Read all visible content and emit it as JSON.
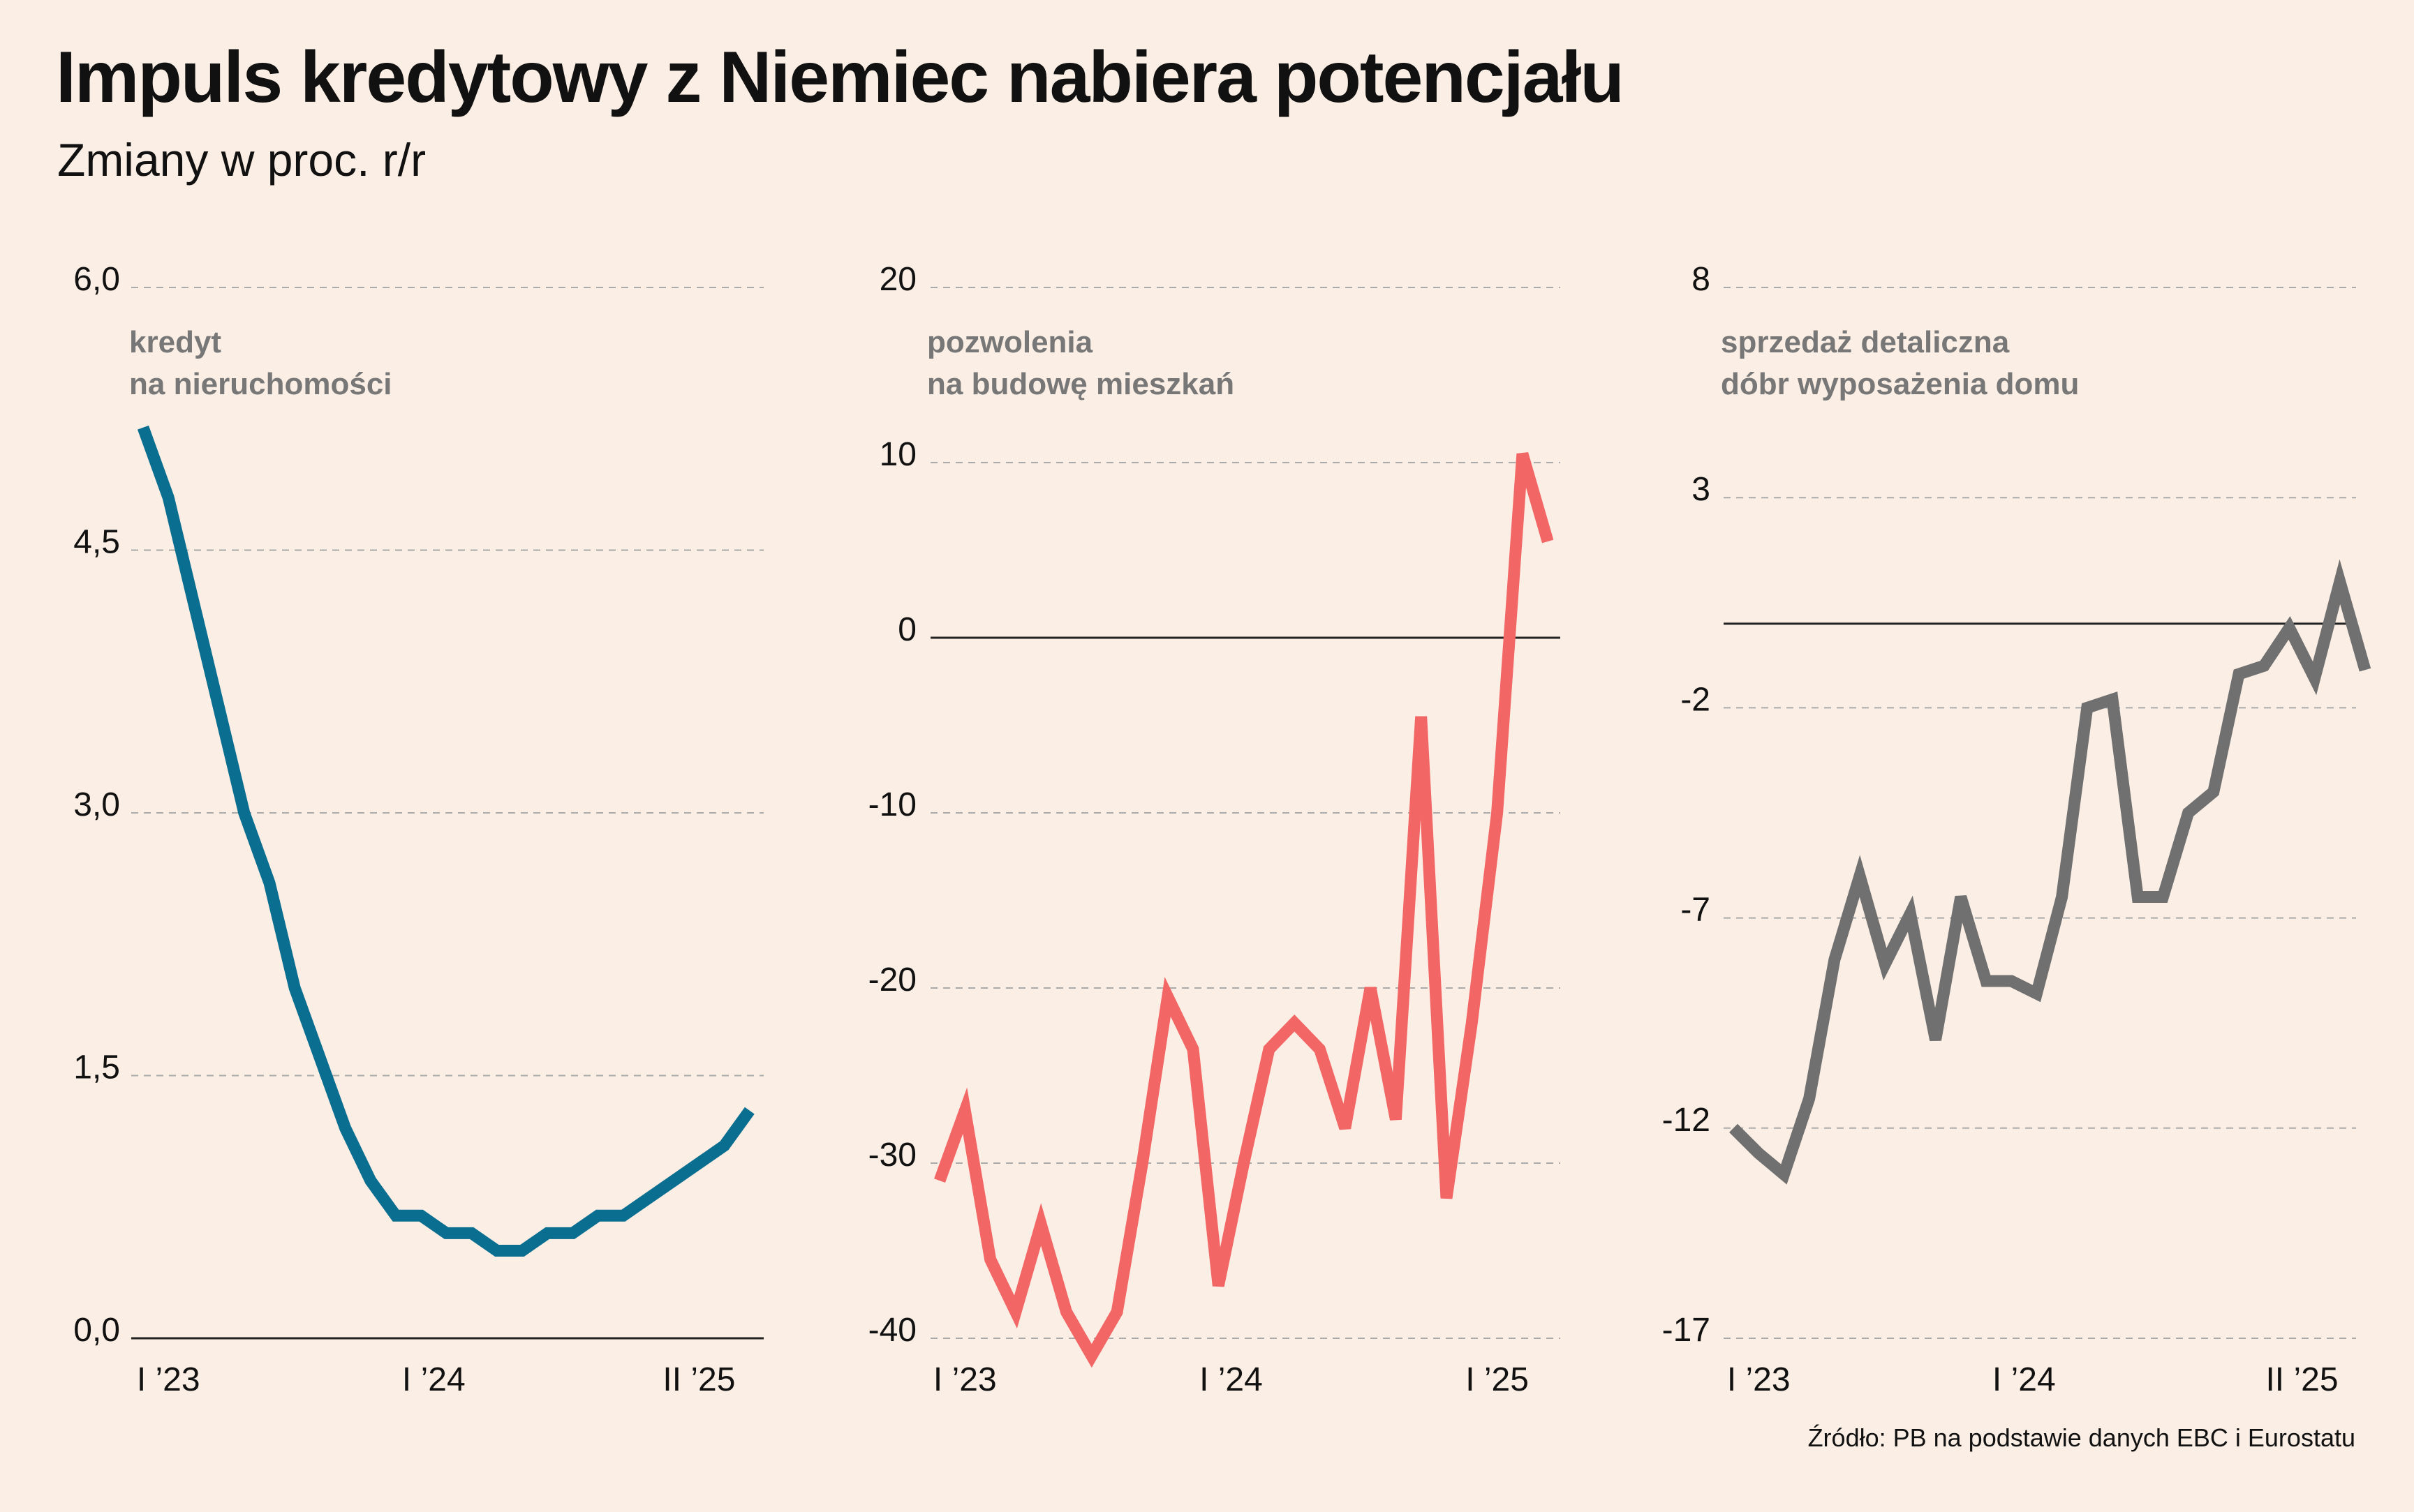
{
  "title": "Impuls kredytowy z Niemiec nabiera potencjału",
  "subtitle": "Zmiany w proc. r/r",
  "source": "Źródło: PB na podstawie danych EBC i Eurostatu",
  "chart_data": [
    {
      "type": "line",
      "series": [
        {
          "name": "kredyt na nieruchomości",
          "label_lines": [
            "kredyt",
            "na nieruchomości"
          ],
          "color": "#0a6e91",
          "values": [
            5.2,
            4.8,
            4.2,
            3.6,
            3.0,
            2.6,
            2.0,
            1.6,
            1.2,
            0.9,
            0.7,
            0.7,
            0.6,
            0.6,
            0.5,
            0.5,
            0.6,
            0.6,
            0.7,
            0.7,
            0.8,
            0.9,
            1.0,
            1.1,
            1.3
          ]
        }
      ],
      "ylim": [
        0,
        6
      ],
      "yticks": [
        "6,0",
        "4,5",
        "3,0",
        "1,5",
        "0,0"
      ],
      "ytick_values": [
        6,
        4.5,
        3,
        1.5,
        0
      ],
      "xticks": [
        {
          "label": "I ’23",
          "index": 1
        },
        {
          "label": "I ’24",
          "index": 11.5
        },
        {
          "label": "II ’25",
          "index": 22
        }
      ],
      "zero_line": 0
    },
    {
      "type": "line",
      "series": [
        {
          "name": "pozwolenia na budowę mieszkań",
          "label_lines": [
            "pozwolenia",
            "na budowę mieszkań"
          ],
          "color": "#f26666",
          "values": [
            -31,
            -27,
            -35.5,
            -38.5,
            -33.5,
            -38.5,
            -41,
            -38.5,
            -30,
            -20.5,
            -23.5,
            -37,
            -30,
            -23.5,
            -22,
            -23.5,
            -28,
            -20,
            -27.5,
            -4.5,
            -32,
            -22,
            -10,
            10.5,
            5.5
          ]
        }
      ],
      "ylim": [
        -40,
        20
      ],
      "yticks": [
        "20",
        "10",
        "0",
        "-10",
        "-20",
        "-30",
        "-40"
      ],
      "ytick_values": [
        20,
        10,
        0,
        -10,
        -20,
        -30,
        -40
      ],
      "xticks": [
        {
          "label": "I ’23",
          "index": 1
        },
        {
          "label": "I ’24",
          "index": 11.5
        },
        {
          "label": "I ’25",
          "index": 22
        }
      ],
      "zero_line": 0
    },
    {
      "type": "line",
      "series": [
        {
          "name": "sprzedaż detaliczna dóbr wyposażenia domu",
          "label_lines": [
            "sprzedaż detaliczna",
            "dóbr wyposażenia domu"
          ],
          "color": "#707070",
          "values": [
            -12,
            -12.6,
            -13.1,
            -11.3,
            -8.0,
            -6.0,
            -8.1,
            -6.9,
            -9.9,
            -6.5,
            -8.5,
            -8.5,
            -8.8,
            -6.5,
            -2.0,
            -1.8,
            -6.5,
            -6.5,
            -4.5,
            -4.0,
            -1.2,
            -1.0,
            -0.1,
            -1.3,
            1.0,
            -1.1
          ]
        }
      ],
      "ylim": [
        -17,
        8
      ],
      "yticks": [
        "8",
        "3",
        "-2",
        "-7",
        "-12",
        "-17"
      ],
      "ytick_values": [
        8,
        3,
        -2,
        -7,
        -12,
        -17
      ],
      "xticks": [
        {
          "label": "I ’23",
          "index": 1
        },
        {
          "label": "I ’24",
          "index": 11.5
        },
        {
          "label": "II ’25",
          "index": 22.5
        }
      ],
      "zero_line": 0
    }
  ]
}
